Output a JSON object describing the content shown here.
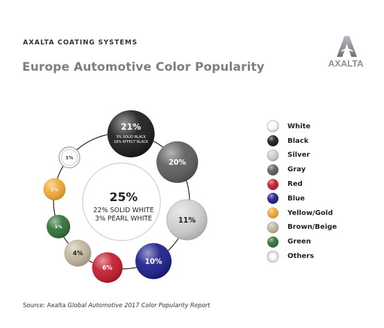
{
  "header": {
    "brand": "AXALTA COATING SYSTEMS",
    "title": "Europe Automotive Color Popularity",
    "logo_text": "AXALTA"
  },
  "chart_data": {
    "type": "pie",
    "title": "Europe Automotive Color Popularity",
    "legend_placement": "right",
    "categories": [
      "White",
      "Black",
      "Silver",
      "Gray",
      "Red",
      "Blue",
      "Yellow/Gold",
      "Brown/Beige",
      "Green",
      "Others"
    ],
    "values": [
      25,
      21,
      11,
      20,
      6,
      10,
      1,
      4,
      1,
      1
    ],
    "colors": [
      "#ffffff",
      "#1a1a1a",
      "#cfd0d2",
      "#5a5b5d",
      "#c3182c",
      "#1b1c8a",
      "#f0a832",
      "#c2b69b",
      "#2d6e34",
      "#ffffff"
    ],
    "data_labels": [
      "25%",
      "21%",
      "11%",
      "20%",
      "6%",
      "10%",
      "1%",
      "4%",
      "1%",
      "1%"
    ],
    "annotations": {
      "White": [
        "22% SOLID WHITE",
        "3% PEARL WHITE"
      ],
      "Black": [
        "3% SOLID BLACK",
        "18% EFFECT BLACK"
      ]
    }
  },
  "footer": {
    "source_prefix": "Source: Axalta ",
    "source_italic": "Global Automotive 2017 Color Popularity Report"
  }
}
